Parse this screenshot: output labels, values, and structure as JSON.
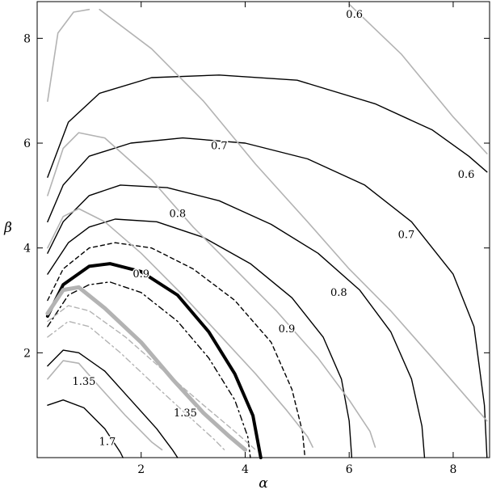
{
  "chart_data": {
    "type": "line",
    "title": "",
    "xlabel": "α",
    "ylabel": "β",
    "xlim": [
      0,
      8.7
    ],
    "ylim": [
      0,
      8.7
    ],
    "xticks": [
      2,
      4,
      6,
      8
    ],
    "yticks": [
      2,
      4,
      6,
      8
    ],
    "grid": false,
    "contour_labels": [
      {
        "text": "0.6",
        "x": 6.1,
        "y": 8.45
      },
      {
        "text": "0.6",
        "x": 8.25,
        "y": 5.4
      },
      {
        "text": "0.7",
        "x": 3.5,
        "y": 5.95
      },
      {
        "text": "0.7",
        "x": 7.1,
        "y": 4.25
      },
      {
        "text": "0.8",
        "x": 2.7,
        "y": 4.65
      },
      {
        "text": "0.8",
        "x": 5.8,
        "y": 3.15
      },
      {
        "text": "0.9",
        "x": 2.0,
        "y": 3.5
      },
      {
        "text": "0.9",
        "x": 4.8,
        "y": 2.45
      },
      {
        "text": "1.35",
        "x": 0.9,
        "y": 1.45
      },
      {
        "text": "1.35",
        "x": 2.85,
        "y": 0.85
      },
      {
        "text": "1.7",
        "x": 1.35,
        "y": 0.3
      }
    ],
    "series": [
      {
        "style": "black",
        "points": [
          [
            0.2,
            5.35
          ],
          [
            0.6,
            6.4
          ],
          [
            1.2,
            6.95
          ],
          [
            2.2,
            7.25
          ],
          [
            3.5,
            7.3
          ],
          [
            5.0,
            7.2
          ],
          [
            6.5,
            6.75
          ],
          [
            7.6,
            6.25
          ],
          [
            8.3,
            5.75
          ],
          [
            8.65,
            5.45
          ]
        ]
      },
      {
        "style": "black",
        "points": [
          [
            0.2,
            4.5
          ],
          [
            0.5,
            5.2
          ],
          [
            1.0,
            5.75
          ],
          [
            1.8,
            6.0
          ],
          [
            2.8,
            6.1
          ],
          [
            4.0,
            6.0
          ],
          [
            5.2,
            5.7
          ],
          [
            6.3,
            5.2
          ],
          [
            7.2,
            4.5
          ],
          [
            8.0,
            3.5
          ],
          [
            8.4,
            2.5
          ],
          [
            8.6,
            1.0
          ],
          [
            8.65,
            0.0
          ]
        ]
      },
      {
        "style": "black",
        "points": [
          [
            0.2,
            3.9
          ],
          [
            0.5,
            4.5
          ],
          [
            1.0,
            5.0
          ],
          [
            1.6,
            5.2
          ],
          [
            2.5,
            5.15
          ],
          [
            3.5,
            4.9
          ],
          [
            4.5,
            4.45
          ],
          [
            5.4,
            3.9
          ],
          [
            6.2,
            3.2
          ],
          [
            6.8,
            2.4
          ],
          [
            7.2,
            1.5
          ],
          [
            7.4,
            0.6
          ],
          [
            7.45,
            0.0
          ]
        ]
      },
      {
        "style": "black",
        "points": [
          [
            0.2,
            3.5
          ],
          [
            0.6,
            4.1
          ],
          [
            1.0,
            4.4
          ],
          [
            1.5,
            4.55
          ],
          [
            2.3,
            4.5
          ],
          [
            3.2,
            4.2
          ],
          [
            4.1,
            3.7
          ],
          [
            4.9,
            3.05
          ],
          [
            5.5,
            2.3
          ],
          [
            5.85,
            1.5
          ],
          [
            6.0,
            0.7
          ],
          [
            6.05,
            0.0
          ]
        ]
      },
      {
        "style": "black-dashed",
        "points": [
          [
            0.2,
            3.0
          ],
          [
            0.5,
            3.6
          ],
          [
            1.0,
            4.0
          ],
          [
            1.5,
            4.1
          ],
          [
            2.2,
            4.0
          ],
          [
            3.0,
            3.6
          ],
          [
            3.8,
            3.0
          ],
          [
            4.5,
            2.2
          ],
          [
            4.9,
            1.3
          ],
          [
            5.1,
            0.5
          ],
          [
            5.15,
            0.0
          ]
        ]
      },
      {
        "style": "black-thick",
        "points": [
          [
            0.2,
            2.7
          ],
          [
            0.5,
            3.3
          ],
          [
            1.0,
            3.65
          ],
          [
            1.4,
            3.7
          ],
          [
            2.0,
            3.55
          ],
          [
            2.7,
            3.1
          ],
          [
            3.3,
            2.4
          ],
          [
            3.8,
            1.6
          ],
          [
            4.15,
            0.8
          ],
          [
            4.3,
            0.0
          ]
        ]
      },
      {
        "style": "black-dashdot",
        "points": [
          [
            0.2,
            2.5
          ],
          [
            0.6,
            3.1
          ],
          [
            1.0,
            3.3
          ],
          [
            1.4,
            3.35
          ],
          [
            2.0,
            3.15
          ],
          [
            2.7,
            2.6
          ],
          [
            3.3,
            1.9
          ],
          [
            3.8,
            1.1
          ],
          [
            4.05,
            0.4
          ],
          [
            4.1,
            0.0
          ]
        ]
      },
      {
        "style": "black",
        "points": [
          [
            0.2,
            1.75
          ],
          [
            0.5,
            2.05
          ],
          [
            0.8,
            2.0
          ],
          [
            1.3,
            1.65
          ],
          [
            1.8,
            1.1
          ],
          [
            2.3,
            0.55
          ],
          [
            2.6,
            0.15
          ],
          [
            2.7,
            0.0
          ]
        ]
      },
      {
        "style": "black",
        "points": [
          [
            0.2,
            1.0
          ],
          [
            0.5,
            1.1
          ],
          [
            0.9,
            0.95
          ],
          [
            1.3,
            0.55
          ],
          [
            1.6,
            0.1
          ],
          [
            1.65,
            0.0
          ]
        ]
      },
      {
        "style": "gray",
        "points": [
          [
            0.2,
            6.8
          ],
          [
            0.4,
            8.1
          ],
          [
            0.7,
            8.5
          ],
          [
            1.0,
            8.55
          ]
        ]
      },
      {
        "style": "gray",
        "points": [
          [
            1.2,
            8.55
          ],
          [
            2.2,
            7.8
          ],
          [
            3.2,
            6.8
          ],
          [
            4.2,
            5.6
          ],
          [
            5.2,
            4.5
          ],
          [
            6.0,
            3.6
          ],
          [
            6.8,
            2.8
          ],
          [
            7.6,
            1.9
          ],
          [
            8.3,
            1.1
          ],
          [
            8.65,
            0.7
          ]
        ]
      },
      {
        "style": "gray",
        "points": [
          [
            6.0,
            8.65
          ],
          [
            7.0,
            7.7
          ],
          [
            8.0,
            6.5
          ],
          [
            8.65,
            5.8
          ]
        ]
      },
      {
        "style": "gray",
        "points": [
          [
            0.2,
            5.0
          ],
          [
            0.5,
            5.9
          ],
          [
            0.8,
            6.2
          ],
          [
            1.3,
            6.1
          ],
          [
            2.2,
            5.3
          ],
          [
            3.0,
            4.4
          ],
          [
            3.8,
            3.6
          ],
          [
            4.6,
            2.8
          ],
          [
            5.4,
            1.9
          ],
          [
            6.0,
            1.1
          ],
          [
            6.4,
            0.5
          ],
          [
            6.5,
            0.2
          ]
        ]
      },
      {
        "style": "gray",
        "points": [
          [
            0.2,
            4.0
          ],
          [
            0.5,
            4.6
          ],
          [
            0.8,
            4.75
          ],
          [
            1.3,
            4.5
          ],
          [
            2.0,
            3.9
          ],
          [
            2.8,
            3.1
          ],
          [
            3.5,
            2.35
          ],
          [
            4.2,
            1.6
          ],
          [
            4.8,
            0.9
          ],
          [
            5.2,
            0.4
          ],
          [
            5.3,
            0.2
          ]
        ]
      },
      {
        "style": "gray-thick",
        "points": [
          [
            0.2,
            2.75
          ],
          [
            0.5,
            3.2
          ],
          [
            0.8,
            3.25
          ],
          [
            1.3,
            2.85
          ],
          [
            2.0,
            2.2
          ],
          [
            2.6,
            1.5
          ],
          [
            3.2,
            0.85
          ],
          [
            3.7,
            0.4
          ],
          [
            4.0,
            0.15
          ]
        ]
      },
      {
        "style": "gray-dashed",
        "points": [
          [
            0.2,
            2.6
          ],
          [
            0.6,
            2.9
          ],
          [
            1.0,
            2.8
          ],
          [
            1.7,
            2.3
          ],
          [
            2.5,
            1.6
          ],
          [
            3.2,
            1.0
          ],
          [
            3.8,
            0.5
          ],
          [
            4.2,
            0.15
          ]
        ]
      },
      {
        "style": "gray-dashdot",
        "points": [
          [
            0.2,
            2.3
          ],
          [
            0.6,
            2.6
          ],
          [
            1.0,
            2.5
          ],
          [
            1.6,
            2.0
          ],
          [
            2.3,
            1.35
          ],
          [
            2.9,
            0.8
          ],
          [
            3.4,
            0.35
          ],
          [
            3.6,
            0.15
          ]
        ]
      },
      {
        "style": "gray",
        "points": [
          [
            0.2,
            1.5
          ],
          [
            0.5,
            1.85
          ],
          [
            0.8,
            1.8
          ],
          [
            1.2,
            1.35
          ],
          [
            1.7,
            0.8
          ],
          [
            2.2,
            0.3
          ],
          [
            2.4,
            0.15
          ]
        ]
      }
    ]
  },
  "styles": {
    "black": {
      "color": "#000000",
      "width": 1.4,
      "dash": ""
    },
    "black-thick": {
      "color": "#000000",
      "width": 4.0,
      "dash": ""
    },
    "black-dashed": {
      "color": "#000000",
      "width": 1.4,
      "dash": "5,4"
    },
    "black-dashdot": {
      "color": "#000000",
      "width": 1.4,
      "dash": "7,4,2,4"
    },
    "gray": {
      "color": "#b3b3b3",
      "width": 1.6,
      "dash": ""
    },
    "gray-thick": {
      "color": "#b3b3b3",
      "width": 5.0,
      "dash": ""
    },
    "gray-dashed": {
      "color": "#b3b3b3",
      "width": 1.4,
      "dash": "6,4"
    },
    "gray-dashdot": {
      "color": "#b3b3b3",
      "width": 1.4,
      "dash": "7,4,2,4"
    }
  }
}
